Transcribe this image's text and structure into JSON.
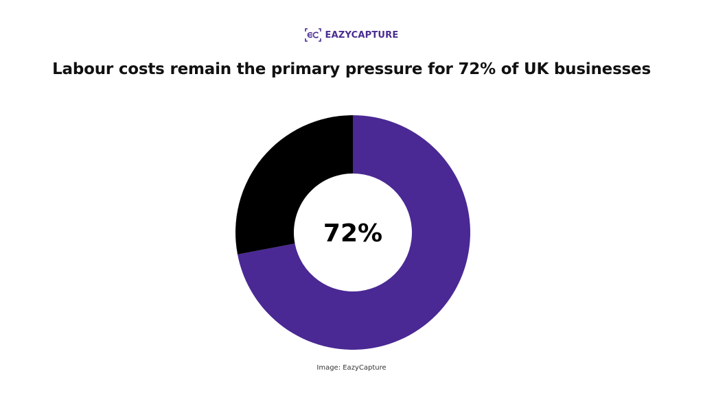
{
  "brand": {
    "logo_text": "EAZYCAPTURE",
    "logo_icon": "ec-logo-icon",
    "color": "#4a2c91"
  },
  "title": "Labour costs remain the primary pressure for 72% of UK businesses",
  "caption": "Image: EazyCapture",
  "chart_data": {
    "type": "pie",
    "donut": true,
    "center_label": "72%",
    "slices": [
      {
        "value": 72,
        "color": "#4a2994"
      },
      {
        "value": 28,
        "color": "#000000"
      }
    ]
  }
}
